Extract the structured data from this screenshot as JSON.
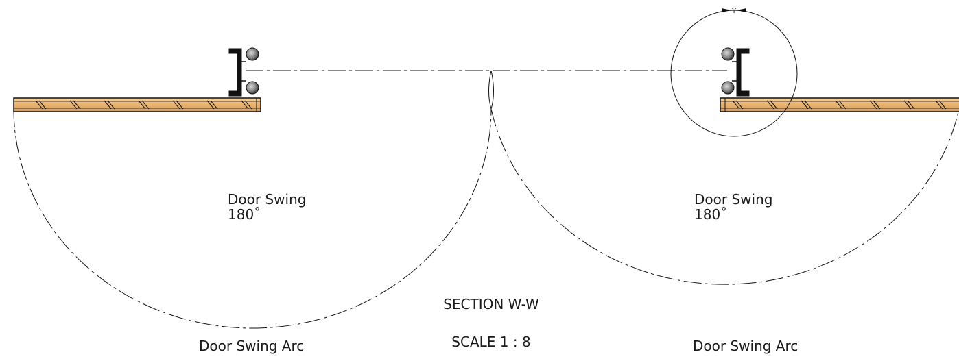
{
  "colors": {
    "line": "#111111",
    "wood_light": "#f2c58a",
    "wood_dark": "#d39a52",
    "hardware_light": "#bcbcbc",
    "hardware_dark": "#4a4a4a"
  },
  "left_door": {
    "swing_label": "Door Swing",
    "angle_label": "180˚",
    "arc_label": "Door Swing Arc"
  },
  "right_door": {
    "swing_label": "Door Swing",
    "angle_label": "180˚",
    "arc_label": "Door Swing Arc"
  },
  "detail_callout": {
    "label": "Y"
  },
  "section": {
    "title": "SECTION W-W",
    "scale": "SCALE 1 : 8"
  }
}
